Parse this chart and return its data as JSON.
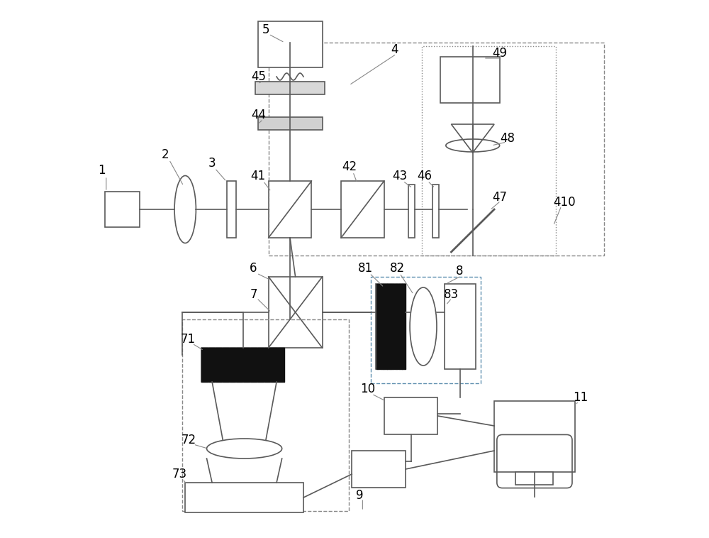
{
  "bg_color": "#ffffff",
  "lc": "#5a5a5a",
  "dc": "#888888",
  "fig_width": 10.0,
  "fig_height": 7.58,
  "dpi": 100
}
